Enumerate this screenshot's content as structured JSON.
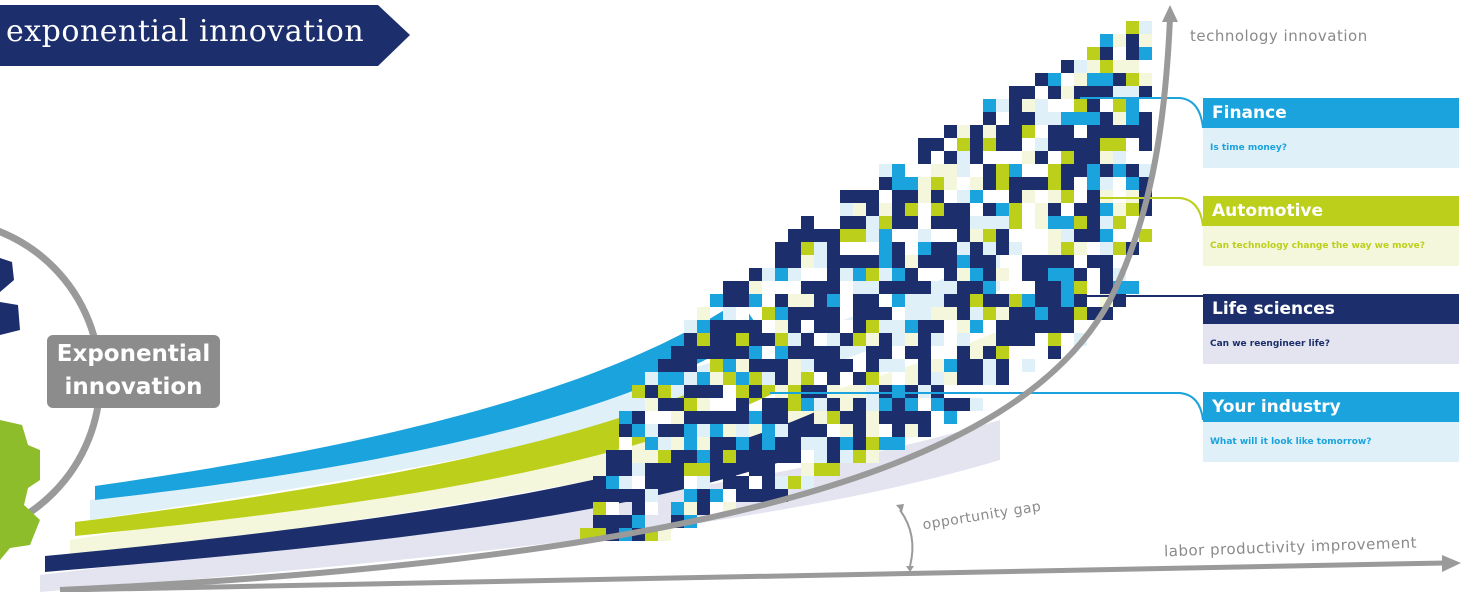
{
  "banner": {
    "title": "exponential innovation"
  },
  "gear_label": "Exponential\ninnovation",
  "axes": {
    "y_label": "technology innovation",
    "x_label": "labor productivity improvement",
    "gap_label": "opportunity gap"
  },
  "colors": {
    "navy": "#1c2f6c",
    "cyan": "#1aa3dc",
    "lime": "#bccf1a",
    "pale_blue": "#dff0f8",
    "pale_lime": "#f5f7dc",
    "pale_navy": "#e3e4ef",
    "gray": "#9a9a9a",
    "green_gear": "#8dbd2a"
  },
  "industries": [
    {
      "name": "Finance",
      "question": "Is time money?",
      "color": "#1aa3dc",
      "pale": "#dff0f8",
      "text": "#1aa3dc"
    },
    {
      "name": "Automotive",
      "question": "Can technology change the way we move?",
      "color": "#bccf1a",
      "pale": "#f5f7dc",
      "text": "#bccf1a"
    },
    {
      "name": "Life sciences",
      "question": "Can we reengineer life?",
      "color": "#1c2f6c",
      "pale": "#e3e4ef",
      "text": "#1c2f6c"
    },
    {
      "name": "Your industry",
      "question": "What will it look like tomorrow?",
      "color": "#1aa3dc",
      "pale": "#dff0f8",
      "text": "#1aa3dc"
    }
  ]
}
